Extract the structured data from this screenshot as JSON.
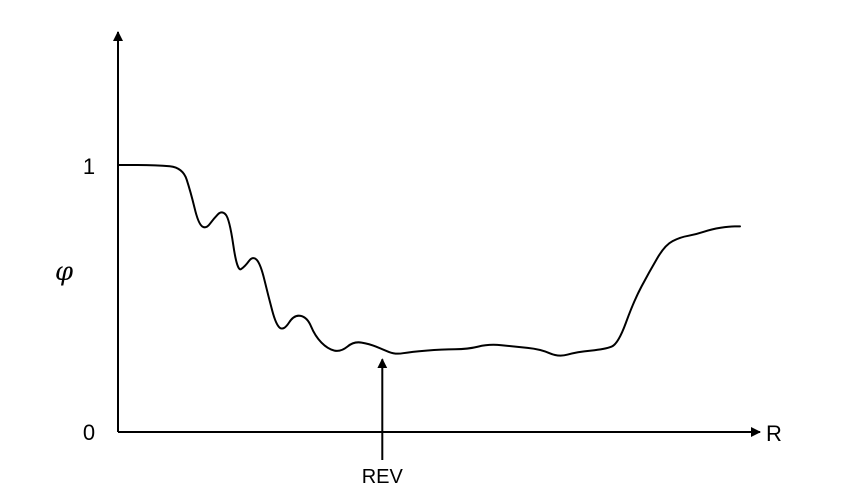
{
  "chart_data": {
    "type": "line",
    "xlabel": "R",
    "ylabel": "φ",
    "yticks": [
      {
        "value": 0,
        "label": "0"
      },
      {
        "value": 1,
        "label": "1"
      }
    ],
    "ylim": [
      0,
      1.5
    ],
    "xlim": [
      0,
      24
    ],
    "grid": false,
    "series": [
      {
        "values": [
          [
            0.0,
            1.0
          ],
          [
            1.5,
            1.0
          ],
          [
            2.5,
            0.99
          ],
          [
            2.8,
            0.9
          ],
          [
            3.1,
            0.78
          ],
          [
            3.4,
            0.76
          ],
          [
            3.7,
            0.8
          ],
          [
            4.0,
            0.83
          ],
          [
            4.3,
            0.8
          ],
          [
            4.6,
            0.6
          ],
          [
            4.9,
            0.62
          ],
          [
            5.2,
            0.66
          ],
          [
            5.5,
            0.63
          ],
          [
            5.8,
            0.51
          ],
          [
            6.1,
            0.4
          ],
          [
            6.4,
            0.38
          ],
          [
            6.8,
            0.44
          ],
          [
            7.3,
            0.43
          ],
          [
            7.6,
            0.36
          ],
          [
            8.1,
            0.31
          ],
          [
            8.6,
            0.3
          ],
          [
            9.1,
            0.34
          ],
          [
            9.7,
            0.33
          ],
          [
            10.2,
            0.31
          ],
          [
            10.7,
            0.29
          ],
          [
            11.3,
            0.3
          ],
          [
            12.5,
            0.31
          ],
          [
            13.5,
            0.31
          ],
          [
            14.3,
            0.33
          ],
          [
            15.3,
            0.32
          ],
          [
            16.3,
            0.31
          ],
          [
            17.0,
            0.28
          ],
          [
            17.7,
            0.3
          ],
          [
            18.8,
            0.31
          ],
          [
            19.3,
            0.33
          ],
          [
            19.9,
            0.49
          ],
          [
            20.5,
            0.6
          ],
          [
            21.1,
            0.7
          ],
          [
            21.7,
            0.73
          ],
          [
            22.3,
            0.74
          ],
          [
            22.9,
            0.76
          ],
          [
            23.6,
            0.77
          ],
          [
            24.0,
            0.77
          ]
        ]
      }
    ],
    "annotations": [
      {
        "text": "REV",
        "x": 10.2,
        "y": 0.28,
        "type": "arrow-up"
      }
    ]
  },
  "colors": {
    "line": "#000000",
    "axis": "#000000",
    "background": "#ffffff"
  }
}
